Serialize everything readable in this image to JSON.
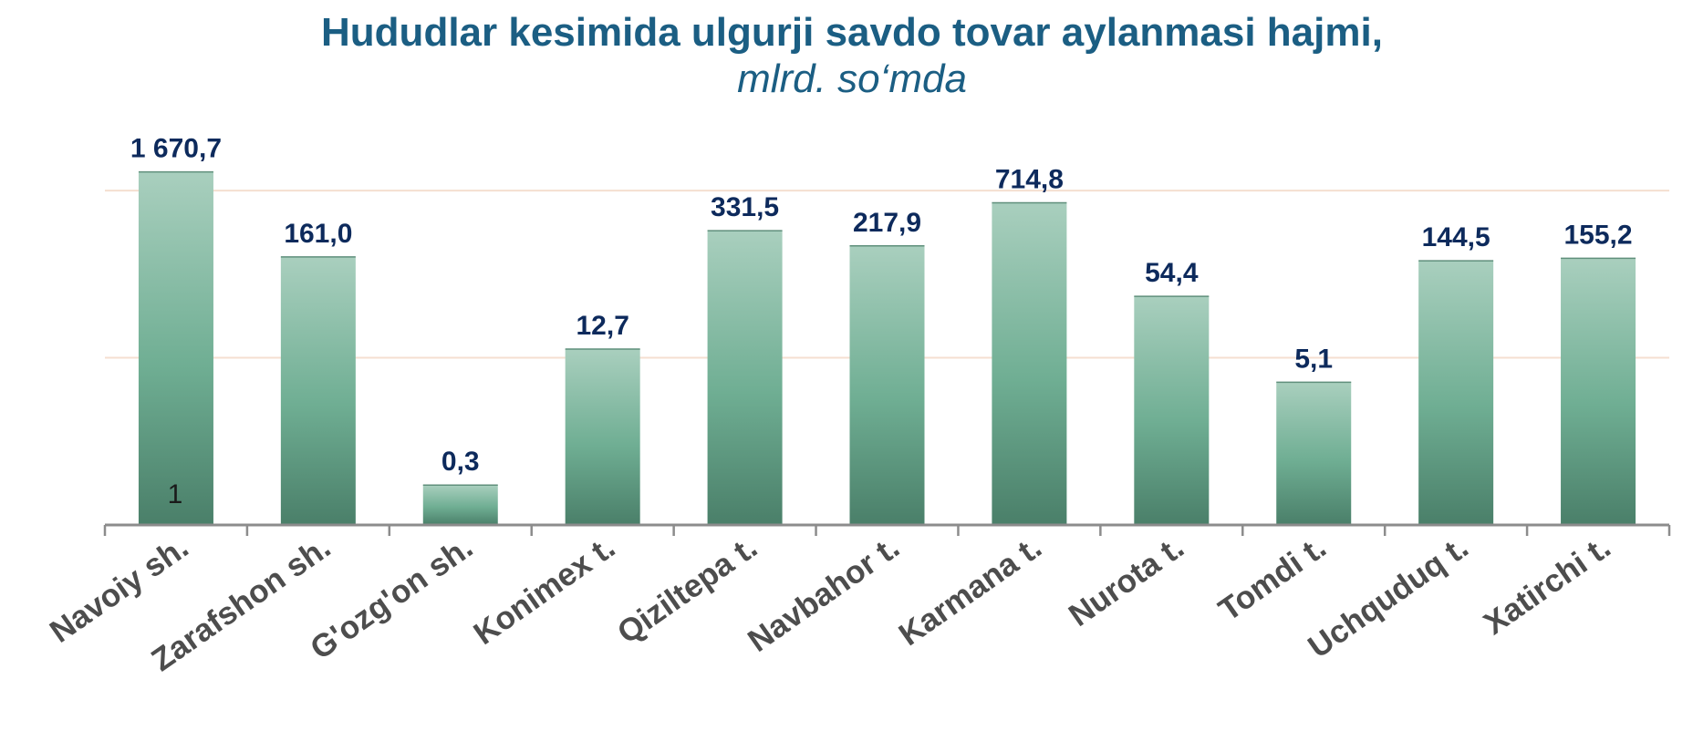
{
  "chart_data": {
    "type": "bar",
    "title": "Hududlar kesimida ulgurji savdo tovar aylanmasi hajmi,",
    "subtitle": "mlrd. so‘mda",
    "xlabel": "",
    "ylabel": "",
    "scale": "log",
    "ylim": [
      0.1,
      5000
    ],
    "grid": true,
    "legend": "none",
    "categories": [
      "Navoiy sh.",
      "Zarafshon sh.",
      "G'ozg'on sh.",
      "Konimex t.",
      "Qiziltepa t.",
      "Navbahor t.",
      "Karmana t.",
      "Nurota t.",
      "Tomdi t.",
      "Uchquduq t.",
      "Xatirchi t."
    ],
    "values": [
      1670.7,
      161.0,
      0.3,
      12.7,
      331.5,
      217.9,
      714.8,
      54.4,
      5.1,
      144.5,
      155.2
    ],
    "value_labels": [
      "1 670,7",
      "161,0",
      "0,3",
      "12,7",
      "331,5",
      "217,9",
      "714,8",
      "54,4",
      "5,1",
      "144,5",
      "155,2"
    ],
    "annotation": "1",
    "colors": {
      "title": "#1b5e83",
      "data_label": "#0d2a5c",
      "category_label": "#4d4d4d",
      "bar_top": "#a9cfbe",
      "bar_mid": "#6fae93",
      "bar_bottom": "#4a7f69",
      "axis": "#8c8c8c",
      "grid_h": "#f5dfd0",
      "grid_v": "#f6c89a"
    }
  }
}
